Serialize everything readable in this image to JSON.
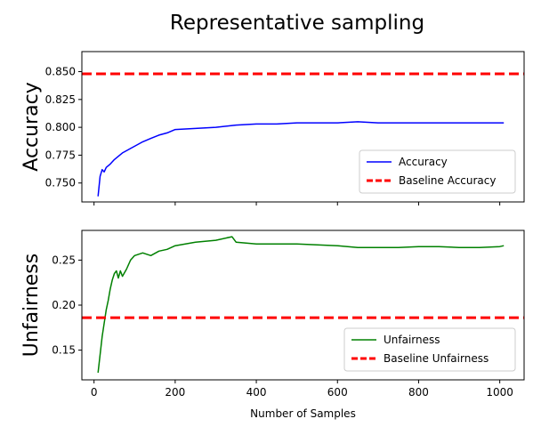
{
  "title": "Representative sampling",
  "chart_data": [
    {
      "type": "line",
      "ylabel": "Accuracy",
      "xlabel": "",
      "xlim": [
        -30,
        1060
      ],
      "ylim": [
        0.733,
        0.868
      ],
      "yticks": [
        0.75,
        0.775,
        0.8,
        0.825,
        0.85
      ],
      "ytick_labels": [
        "0.750",
        "0.775",
        "0.800",
        "0.825",
        "0.850"
      ],
      "xticks": [
        0,
        200,
        400,
        600,
        800,
        1000
      ],
      "show_xtick_labels": false,
      "legend_position": "lower-right",
      "series": [
        {
          "name": "Accuracy",
          "color": "#0000ff",
          "x": [
            10,
            15,
            20,
            25,
            30,
            40,
            50,
            60,
            70,
            80,
            90,
            100,
            120,
            140,
            160,
            180,
            200,
            250,
            300,
            350,
            400,
            450,
            500,
            550,
            600,
            650,
            700,
            750,
            800,
            850,
            900,
            950,
            1000,
            1010
          ],
          "y": [
            0.738,
            0.756,
            0.762,
            0.76,
            0.764,
            0.767,
            0.771,
            0.774,
            0.777,
            0.779,
            0.781,
            0.783,
            0.787,
            0.79,
            0.793,
            0.795,
            0.798,
            0.799,
            0.8,
            0.802,
            0.803,
            0.803,
            0.804,
            0.804,
            0.804,
            0.805,
            0.804,
            0.804,
            0.804,
            0.804,
            0.804,
            0.804,
            0.804,
            0.804
          ]
        }
      ],
      "hlines": [
        {
          "name": "Baseline Accuracy",
          "y": 0.848,
          "color": "#ff0000"
        }
      ]
    },
    {
      "type": "line",
      "ylabel": "Unfairness",
      "xlabel": "Number of Samples",
      "xlim": [
        -30,
        1060
      ],
      "ylim": [
        0.117,
        0.283
      ],
      "yticks": [
        0.15,
        0.2,
        0.25
      ],
      "ytick_labels": [
        "0.15",
        "0.20",
        "0.25"
      ],
      "xticks": [
        0,
        200,
        400,
        600,
        800,
        1000
      ],
      "xtick_labels": [
        "0",
        "200",
        "400",
        "600",
        "800",
        "1000"
      ],
      "legend_position": "lower-right",
      "series": [
        {
          "name": "Unfairness",
          "color": "#008000",
          "x": [
            10,
            15,
            20,
            25,
            30,
            35,
            40,
            45,
            50,
            55,
            60,
            65,
            70,
            80,
            90,
            100,
            120,
            140,
            160,
            180,
            200,
            250,
            300,
            340,
            350,
            400,
            450,
            500,
            550,
            600,
            650,
            700,
            750,
            800,
            850,
            900,
            950,
            1000,
            1010
          ],
          "y": [
            0.125,
            0.145,
            0.165,
            0.18,
            0.195,
            0.205,
            0.218,
            0.228,
            0.235,
            0.238,
            0.23,
            0.238,
            0.232,
            0.24,
            0.25,
            0.255,
            0.258,
            0.255,
            0.26,
            0.262,
            0.266,
            0.27,
            0.272,
            0.276,
            0.27,
            0.268,
            0.268,
            0.268,
            0.267,
            0.266,
            0.264,
            0.264,
            0.264,
            0.265,
            0.265,
            0.264,
            0.264,
            0.265,
            0.266
          ]
        }
      ],
      "hlines": [
        {
          "name": "Baseline Unfairness",
          "y": 0.186,
          "color": "#ff0000"
        }
      ]
    }
  ]
}
